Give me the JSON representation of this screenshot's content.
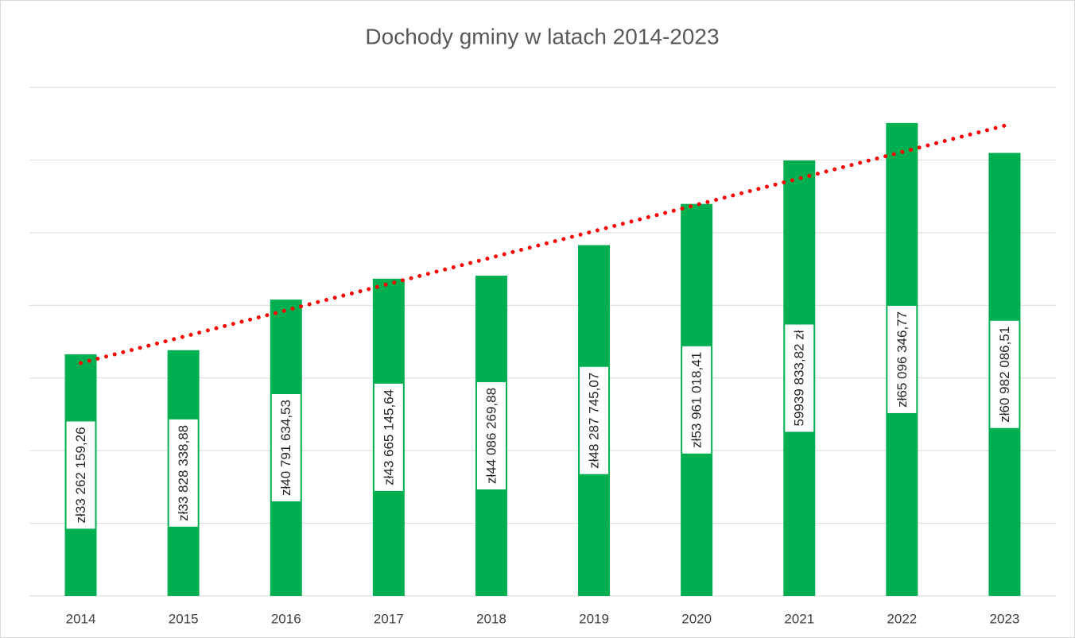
{
  "chart_data": {
    "type": "bar",
    "title": "Dochody gminy w latach 2014-2023",
    "categories": [
      "2014",
      "2015",
      "2016",
      "2017",
      "2018",
      "2019",
      "2020",
      "2021",
      "2022",
      "2023"
    ],
    "values": [
      33262159.26,
      33828338.88,
      40791634.53,
      43665145.64,
      44086269.88,
      48287745.07,
      53961018.41,
      59939833.82,
      65096346.77,
      60982086.51
    ],
    "value_labels": [
      "zł33 262 159,26",
      "zł33 828 338,88",
      "zł40 791 634,53",
      "zł43 665 145,64",
      "zł44 086 269,88",
      "zł48 287 745,07",
      "zł53 961 018,41",
      "59939 833,82 zł",
      "zł65 096 346,77",
      "zł60 982 086,51"
    ],
    "color": "#00b050",
    "ylim": [
      0,
      70000000
    ],
    "yticks": [
      0,
      10000000,
      20000000,
      30000000,
      40000000,
      50000000,
      60000000,
      70000000
    ],
    "show_ytick_labels": false,
    "grid": true,
    "trendline": {
      "type": "linear",
      "color": "#ff0000",
      "style": "dotted"
    }
  }
}
